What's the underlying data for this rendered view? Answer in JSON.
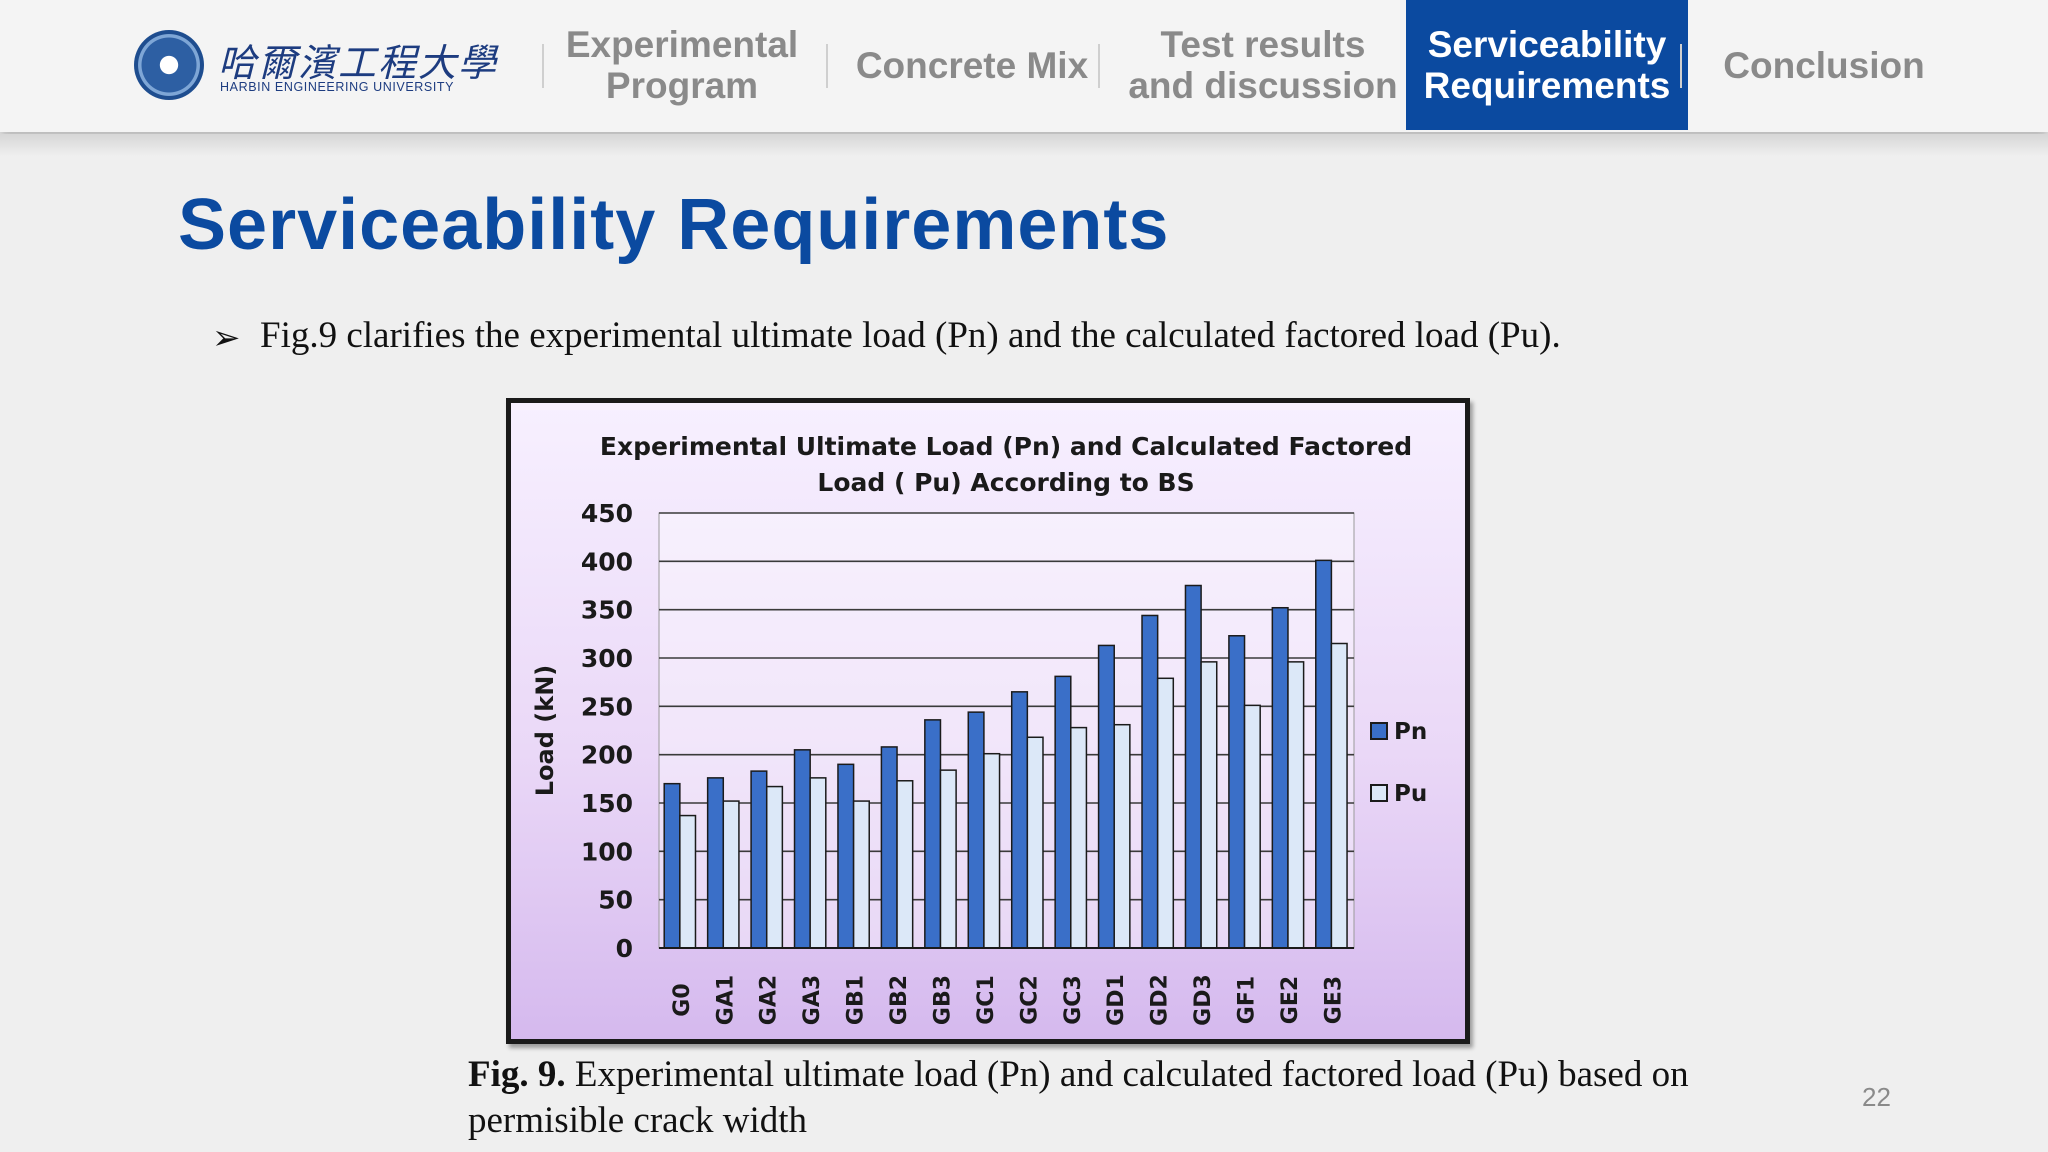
{
  "header": {
    "logo": {
      "chinese_name": "哈爾濱工程大學",
      "english_name": "HARBIN ENGINEERING UNIVERSITY"
    },
    "tabs": [
      {
        "label": "Experimental\nProgram",
        "active": false
      },
      {
        "label": "Concrete Mix",
        "active": false
      },
      {
        "label": "Test results\nand discussion",
        "active": false
      },
      {
        "label": "Serviceability\nRequirements",
        "active": true
      },
      {
        "label": "Conclusion",
        "active": false
      }
    ]
  },
  "slide": {
    "title": "Serviceability Requirements",
    "bullet_marker": "➢",
    "bullet": "Fig.9 clarifies the experimental ultimate load (Pn) and the calculated factored load (Pu).",
    "caption_label": "Fig. 9.",
    "caption_text": " Experimental ultimate load (Pn) and calculated factored load (Pu) based on permisible crack width",
    "page_number": "22"
  },
  "colors": {
    "accent": "#0b4aa0",
    "pn_bar": "#3a6fc8",
    "pu_bar": "#dce8f8"
  },
  "chart_data": {
    "type": "bar",
    "title_lines": [
      "Experimental Ultimate Load (Pn) and Calculated Factored",
      "Load ( Pu) According to BS"
    ],
    "xlabel": "",
    "ylabel": "Load (kN)",
    "ylim": [
      0,
      450
    ],
    "yticks": [
      0,
      50,
      100,
      150,
      200,
      250,
      300,
      350,
      400,
      450
    ],
    "grid": true,
    "legend_position": "right",
    "categories": [
      "G0",
      "GA1",
      "GA2",
      "GA3",
      "GB1",
      "GB2",
      "GB3",
      "GC1",
      "GC2",
      "GC3",
      "GD1",
      "GD2",
      "GD3",
      "GF1",
      "GE2",
      "GE3"
    ],
    "series": [
      {
        "name": "Pn",
        "values": [
          170,
          176,
          183,
          205,
          190,
          208,
          236,
          244,
          265,
          281,
          313,
          344,
          375,
          323,
          352,
          401
        ]
      },
      {
        "name": "Pu",
        "values": [
          137,
          152,
          167,
          176,
          152,
          173,
          184,
          201,
          218,
          228,
          231,
          279,
          296,
          251,
          296,
          315
        ]
      }
    ]
  }
}
